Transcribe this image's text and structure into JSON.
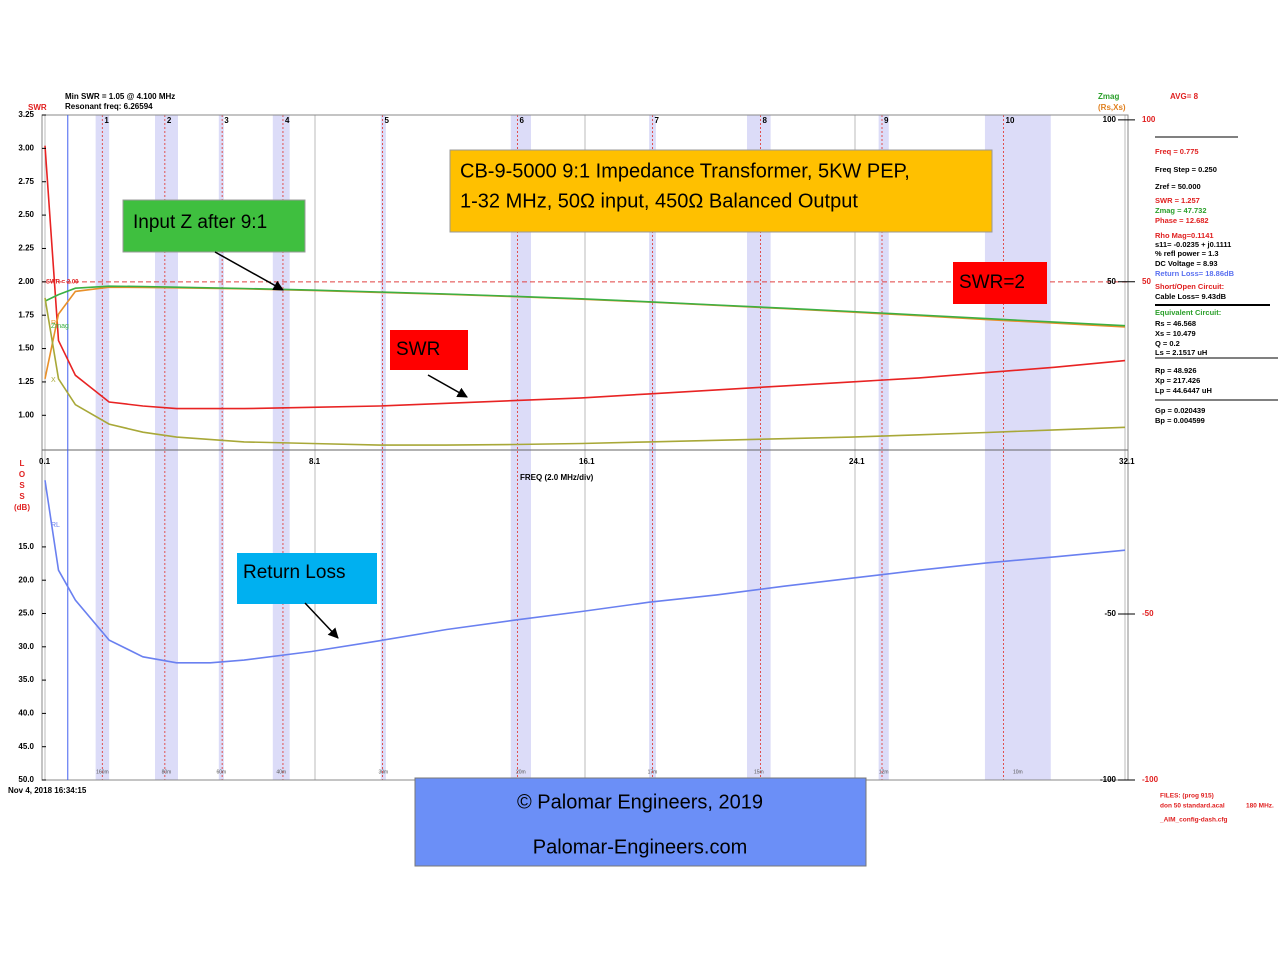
{
  "chart_data": [
    {
      "type": "line",
      "axis_label": "FREQ (2.0 MHz/div)",
      "y_axis_label": "SWR",
      "xlim": [
        0.1,
        32.1
      ],
      "xticks": [
        0.1,
        8.1,
        16.1,
        24.1,
        32.1
      ],
      "ylim": [
        0.74,
        3.25
      ],
      "yticks": [
        3.25,
        {
          "value": 3,
          "label": "3.00"
        },
        2.75,
        {
          "value": 2.5,
          "label": "2.50"
        },
        2.25,
        {
          "value": 2,
          "label": "2.00"
        },
        1.75,
        {
          "value": 1.5,
          "label": "1.50"
        },
        1.25,
        {
          "value": 1,
          "label": "1.00"
        }
      ],
      "y2lim": [
        -2,
        101.5
      ],
      "y2ticks": [
        100,
        50
      ],
      "x": [
        0.1,
        0.5,
        1,
        2,
        3,
        4,
        6,
        8,
        10,
        12,
        14,
        16,
        18,
        20,
        22,
        24,
        26,
        28,
        30,
        32.1
      ],
      "series": [
        {
          "name": "SWR",
          "color": "#e82323",
          "values": [
            3.02,
            1.56,
            1.3,
            1.1,
            1.07,
            1.05,
            1.05,
            1.06,
            1.07,
            1.09,
            1.11,
            1.13,
            1.16,
            1.19,
            1.22,
            1.25,
            1.28,
            1.32,
            1.36,
            1.41
          ]
        },
        {
          "name": "R",
          "color": "#e8902a",
          "axis": "y2",
          "values": [
            20,
            40,
            47,
            48.3,
            48.2,
            48.1,
            47.8,
            47.3,
            46.7,
            46.1,
            45.4,
            44.6,
            43.7,
            42.7,
            41.7,
            40.6,
            39.5,
            38.3,
            37.2,
            36
          ]
        },
        {
          "name": "Zmag",
          "color": "#3cb043",
          "axis": "y2",
          "values": [
            44,
            46,
            48,
            48.6,
            48.5,
            48.3,
            47.9,
            47.4,
            46.8,
            46.2,
            45.5,
            44.7,
            43.8,
            42.8,
            41.8,
            40.8,
            39.7,
            38.6,
            37.5,
            36.4
          ]
        },
        {
          "name": "X",
          "color": "#a8a838",
          "axis": "y2",
          "values": [
            45,
            20,
            12,
            6,
            3.5,
            2,
            0.5,
            0,
            -0.5,
            -0.5,
            -0.3,
            0,
            0.5,
            1,
            1.5,
            2,
            2.7,
            3.4,
            4.2,
            5
          ]
        }
      ],
      "ref_line": {
        "value": 2,
        "label": "SWR = 2.00"
      },
      "cursor": 0.775,
      "markers": [
        {
          "label": "1",
          "x": 1.8
        },
        {
          "label": "2",
          "x": 3.65
        },
        {
          "label": "3",
          "x": 5.35
        },
        {
          "label": "4",
          "x": 7.15
        },
        {
          "label": "5",
          "x": 10.1
        },
        {
          "label": "6",
          "x": 14.1
        },
        {
          "label": "7",
          "x": 18.1
        },
        {
          "label": "8",
          "x": 21.3
        },
        {
          "label": "9",
          "x": 24.9
        },
        {
          "label": "10",
          "x": 28.5
        }
      ],
      "bands": [
        {
          "label": "160m",
          "range": [
            1.6,
            2.0
          ]
        },
        {
          "label": "80m",
          "range": [
            3.36,
            4.04
          ]
        },
        {
          "label": "60m",
          "range": [
            5.25,
            5.4
          ]
        },
        {
          "label": "40m",
          "range": [
            6.85,
            7.35
          ]
        },
        {
          "label": "30m",
          "range": [
            10.05,
            10.2
          ]
        },
        {
          "label": "20m",
          "range": [
            13.9,
            14.5
          ]
        },
        {
          "label": "17m",
          "range": [
            18.0,
            18.2
          ]
        },
        {
          "label": "15m",
          "range": [
            20.9,
            21.6
          ]
        },
        {
          "label": "12m",
          "range": [
            24.8,
            25.1
          ]
        },
        {
          "label": "10m",
          "range": [
            27.95,
            29.9
          ]
        }
      ]
    },
    {
      "type": "line",
      "y_axis_label": [
        "L",
        "O",
        "S",
        "S",
        "(dB)"
      ],
      "xlim": [
        0.1,
        32.1
      ],
      "ylim": [
        50,
        0.45
      ],
      "yticks": [
        {
          "value": 15,
          "label": "15.0"
        },
        {
          "value": 20,
          "label": "20.0"
        },
        {
          "value": 25,
          "label": "25.0"
        },
        {
          "value": 30,
          "label": "30.0"
        },
        {
          "value": 35,
          "label": "35.0"
        },
        {
          "value": 40,
          "label": "40.0"
        },
        {
          "value": 45,
          "label": "45.0"
        },
        {
          "value": 50,
          "label": "50.0"
        }
      ],
      "y2lim": [
        -100,
        -0.6
      ],
      "y2ticks": [
        -50,
        -100
      ],
      "x": [
        0.1,
        0.5,
        1,
        2,
        3,
        4,
        5,
        6,
        8,
        10,
        12,
        14,
        16,
        18,
        20,
        22,
        24,
        26,
        28,
        30,
        32.1
      ],
      "series": [
        {
          "name": "RL",
          "color": "#6a80f0",
          "values": [
            5,
            18.5,
            23,
            29,
            31.5,
            32.4,
            32.4,
            32,
            30.7,
            29.1,
            27.4,
            26,
            24.7,
            23.3,
            22.2,
            20.9,
            19.7,
            18.5,
            17.4,
            16.5,
            15.5
          ]
        }
      ]
    }
  ],
  "header": {
    "min_swr": "Min SWR =  1.05 @  4.100 MHz",
    "resonant": "Resonant freq:  6.26594",
    "zmag": "Zmag",
    "rsxs": "(Rs,Xs)",
    "avg": "AVG=  8",
    "date": "Nov 4, 2018  16:34:15"
  },
  "readout": [
    {
      "text": "Freq = 0.775",
      "color": "#e02020"
    },
    {
      "text": "Freq Step = 0.250",
      "color": "#000000"
    },
    {
      "text": "Zref =  50.000",
      "color": "#000000"
    },
    {
      "text": "SWR =  1.257",
      "color": "#e02020"
    },
    {
      "text": "Zmag =  47.732",
      "color": "#2ca02c"
    },
    {
      "text": "Phase =  12.682",
      "color": "#e02020"
    },
    {
      "text": "Rho Mag=0.1141",
      "color": "#e02020"
    },
    {
      "text": "s11= -0.0235 + j0.1111",
      "color": "#000000"
    },
    {
      "text": "% refl power =  1.3",
      "color": "#000000"
    },
    {
      "text": "DC Voltage =  8.93",
      "color": "#000000"
    },
    {
      "text": "Return Loss= 18.86dB",
      "color": "#5a70f0"
    },
    {
      "text": "Short/Open Circuit:",
      "color": "#e02020"
    },
    {
      "text": "Cable Loss=  9.43dB",
      "color": "#000000"
    },
    {
      "text": "Equivalent Circuit:",
      "color": "#2ca02c"
    },
    {
      "text": "Rs =  46.568",
      "color": "#000000"
    },
    {
      "text": "Xs =  10.479",
      "color": "#000000"
    },
    {
      "text": "Q =  0.2",
      "color": "#000000"
    },
    {
      "text": "Ls =  2.1517 uH",
      "color": "#000000"
    },
    {
      "text": "Rp =  48.926",
      "color": "#000000"
    },
    {
      "text": "Xp =  217.426",
      "color": "#000000"
    },
    {
      "text": "Lp =  44.6447  uH",
      "color": "#000000"
    },
    {
      "text": "Gp =  0.020439",
      "color": "#000000"
    },
    {
      "text": "Bp =  0.004599",
      "color": "#000000"
    }
  ],
  "files": [
    "FILES:  (prog 915)",
    "don 50 standard.acal",
    "180 MHz.",
    "_AIM_config-dash.cfg"
  ],
  "annotations": {
    "title": [
      "CB-9-5000 9:1 Impedance Transformer, 5KW PEP,",
      "1-32 MHz, 50Ω input, 450Ω Balanced Output"
    ],
    "input_z": "Input Z after 9:1",
    "swr2": "SWR=2",
    "swr": "SWR",
    "return_loss": "Return Loss"
  },
  "footer": [
    "© Palomar Engineers, 2019",
    "Palomar-Engineers.com"
  ]
}
